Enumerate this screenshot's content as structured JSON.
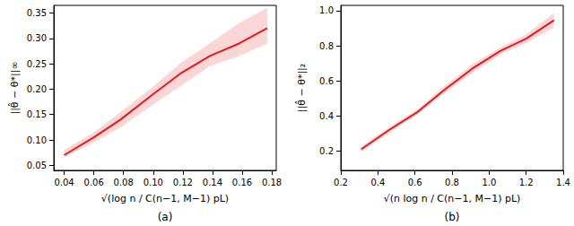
{
  "chart_data": [
    {
      "type": "line",
      "caption": "(a)",
      "x_label": "√(log n / C(n−1, M−1) pL)",
      "y_label": "||θ̂ − θ*||∞",
      "x": [
        0.04,
        0.06,
        0.078,
        0.1,
        0.118,
        0.138,
        0.158,
        0.177
      ],
      "series": [
        {
          "color": "#e41a1c",
          "values": [
            0.07,
            0.105,
            0.14,
            0.19,
            0.23,
            0.265,
            0.29,
            0.32
          ],
          "lower": [
            0.065,
            0.095,
            0.125,
            0.17,
            0.205,
            0.245,
            0.265,
            0.29
          ],
          "upper": [
            0.08,
            0.115,
            0.155,
            0.205,
            0.25,
            0.29,
            0.33,
            0.36
          ]
        }
      ],
      "xlim": [
        0.033,
        0.183
      ],
      "xticks": [
        0.04,
        0.06,
        0.08,
        {
          "value": 0.1,
          "label": "0.10"
        },
        0.12,
        0.14,
        0.16,
        0.18
      ],
      "ylim": [
        0.04,
        0.365
      ],
      "yticks": [
        0.05,
        {
          "value": 0.1,
          "label": "0.10"
        },
        0.15,
        {
          "value": 0.2,
          "label": "0.20"
        },
        0.25,
        {
          "value": 0.3,
          "label": "0.30"
        },
        0.35
      ],
      "grid": false
    },
    {
      "type": "line",
      "caption": "(b)",
      "x_label": "√(n log n / C(n−1, M−1) pL)",
      "y_label": "||θ̂ − θ*||₂",
      "x": [
        0.31,
        0.46,
        0.61,
        0.76,
        0.91,
        1.06,
        1.2,
        1.35
      ],
      "series": [
        {
          "color": "#e41a1c",
          "values": [
            0.21,
            0.32,
            0.42,
            0.55,
            0.67,
            0.77,
            0.84,
            0.945
          ],
          "lower": [
            0.195,
            0.305,
            0.405,
            0.53,
            0.645,
            0.75,
            0.815,
            0.905
          ],
          "upper": [
            0.225,
            0.335,
            0.435,
            0.57,
            0.695,
            0.79,
            0.865,
            0.985
          ]
        }
      ],
      "xlim": [
        0.2,
        1.4
      ],
      "xticks": [
        0.2,
        0.4,
        0.6,
        0.8,
        {
          "value": 1.0,
          "label": "1.0"
        },
        1.2,
        1.4
      ],
      "ylim": [
        0.09,
        1.03
      ],
      "yticks": [
        0.2,
        0.4,
        0.6,
        0.8,
        {
          "value": 1.0,
          "label": "1.0"
        }
      ],
      "grid": false
    }
  ]
}
